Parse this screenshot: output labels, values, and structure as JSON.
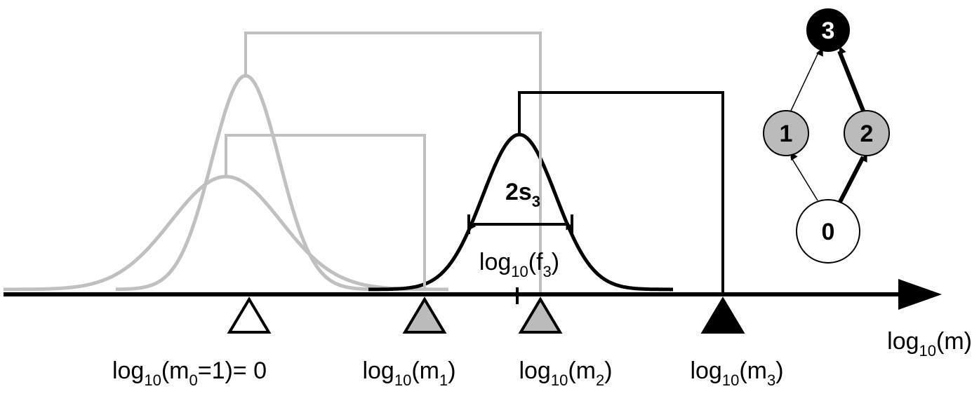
{
  "axis_label": [
    "log",
    "10",
    "(m)"
  ],
  "markers": [
    [
      "log",
      "10",
      "(m",
      "0",
      "=1)= 0"
    ],
    [
      "log",
      "10",
      "(m",
      "1",
      ")"
    ],
    [
      "log",
      "10",
      "(m",
      "2",
      ")"
    ],
    [
      "log",
      "10",
      "(m",
      "3",
      ")"
    ]
  ],
  "width_label": [
    "2s",
    "3"
  ],
  "f_label": [
    "log",
    "10",
    "(f",
    "3",
    ")"
  ],
  "nodes": [
    "0",
    "1",
    "2",
    "3"
  ]
}
